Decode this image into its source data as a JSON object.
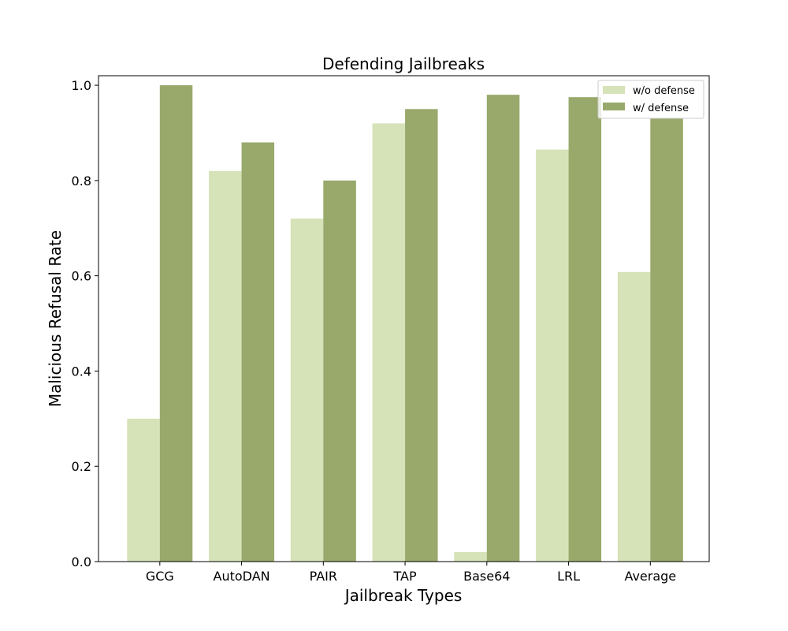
{
  "chart_data": {
    "type": "bar",
    "title": "Defending Jailbreaks",
    "xlabel": "Jailbreak Types",
    "ylabel": "Malicious Refusal Rate",
    "categories": [
      "GCG",
      "AutoDAN",
      "PAIR",
      "TAP",
      "Base64",
      "LRL",
      "Average"
    ],
    "series": [
      {
        "name": "w/o defense",
        "color": "#d6e2b8",
        "values": [
          0.3,
          0.82,
          0.72,
          0.92,
          0.02,
          0.865,
          0.608
        ]
      },
      {
        "name": "w/ defense",
        "color": "#98a96b",
        "values": [
          1.0,
          0.88,
          0.8,
          0.95,
          0.98,
          0.975,
          0.93
        ]
      }
    ],
    "ylim": [
      0,
      1.02
    ],
    "yticks": [
      "0.0",
      "0.2",
      "0.4",
      "0.6",
      "0.8",
      "1.0"
    ],
    "grid": false,
    "legend_position": "top-right"
  }
}
